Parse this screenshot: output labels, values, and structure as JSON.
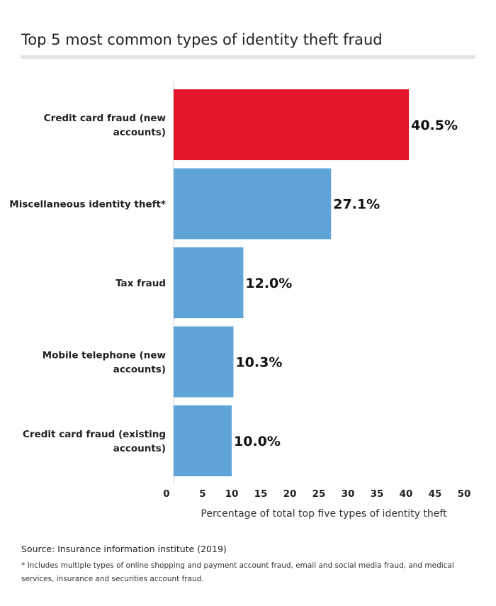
{
  "chart_data": {
    "type": "bar",
    "orientation": "horizontal",
    "title": "Top 5 most common types of identity theft fraud",
    "xlabel": "Percentage of total top five types of identity theft",
    "ylabel": "",
    "xlim": [
      0,
      50
    ],
    "xticks": [
      "0",
      "5",
      "10",
      "15",
      "20",
      "25",
      "30",
      "35",
      "40",
      "45",
      "50"
    ],
    "categories": [
      [
        "Credit card fraud (new",
        "accounts)"
      ],
      [
        "Miscellaneous identity theft*"
      ],
      [
        "Tax fraud"
      ],
      [
        "Mobile telephone (new",
        "accounts)"
      ],
      [
        "Credit card fraud (existing",
        "accounts)"
      ]
    ],
    "values": [
      40.5,
      27.1,
      12.0,
      10.3,
      10.0
    ],
    "value_labels": [
      "40.5%",
      "27.1%",
      "12.0%",
      "10.3%",
      "10.0%"
    ],
    "colors": [
      "#e3172b",
      "#5fa4d9",
      "#5fa4d9",
      "#5fa4d9",
      "#5fa4d9"
    ],
    "grid": false,
    "legend": "none"
  },
  "source": "Source: Insurance information institute (2019)",
  "footnote": "*  Includes multiple types of online shopping and payment account fraud, email and social media fraud, and medical services, insurance and securities account fraud."
}
